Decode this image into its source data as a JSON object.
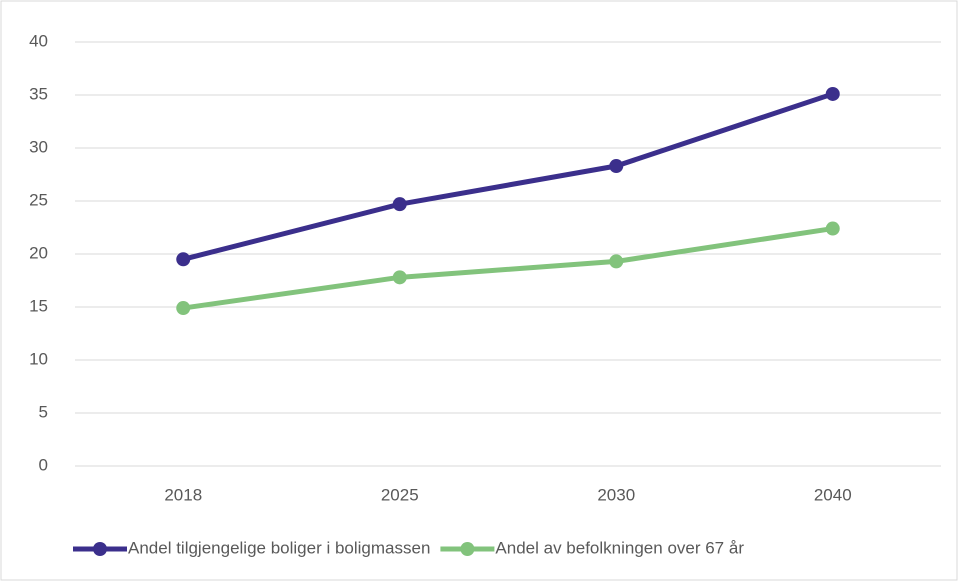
{
  "chart_data": {
    "type": "line",
    "categories": [
      "2018",
      "2025",
      "2030",
      "2040"
    ],
    "series": [
      {
        "name": "Andel tilgjengelige boliger i boligmassen",
        "color": "#3b2f8c",
        "values": [
          19.5,
          24.7,
          28.3,
          35.1
        ]
      },
      {
        "name": "Andel av befolkningen over 67 år",
        "color": "#82c37c",
        "values": [
          14.9,
          17.8,
          19.3,
          22.4
        ]
      }
    ],
    "ylim": [
      0,
      40
    ],
    "yticks": [
      0,
      5,
      10,
      15,
      20,
      25,
      30,
      35,
      40
    ],
    "grid": true,
    "legend": "bottom"
  }
}
